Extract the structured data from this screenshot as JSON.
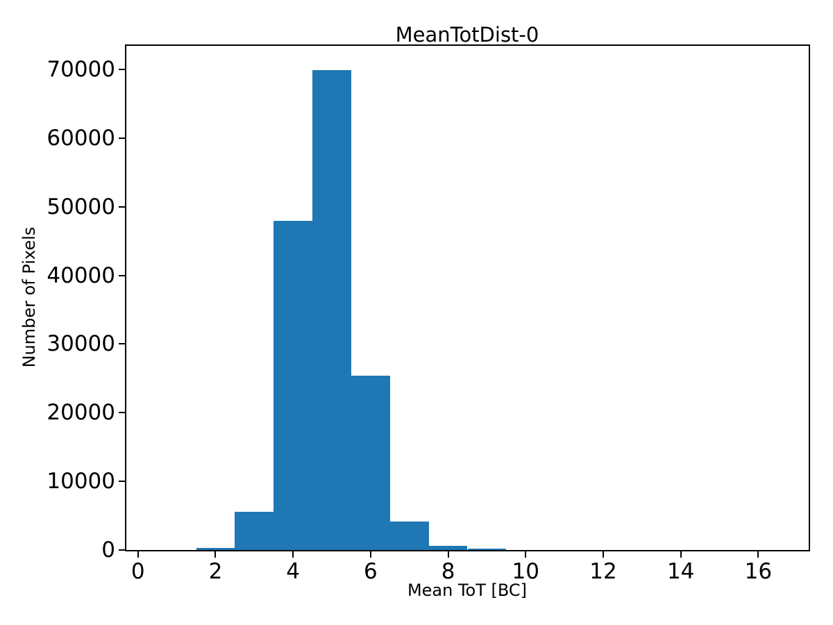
{
  "figure": {
    "background_color": "#ffffff",
    "text_color": "#000000"
  },
  "chart_data": {
    "type": "bar",
    "subtype": "histogram",
    "title": "MeanTotDist-0",
    "xlabel": "Mean ToT [BC]",
    "ylabel": "Number of Pixels",
    "bar_color": "#1f77b4",
    "bin_start": 0.5,
    "bin_width": 1,
    "bin_edges": [
      0.5,
      1.5,
      2.5,
      3.5,
      4.5,
      5.5,
      6.5,
      7.5,
      8.5,
      9.5,
      10.5,
      11.5,
      12.5,
      13.5,
      14.5,
      15.5,
      16.5
    ],
    "values": [
      0,
      300,
      5600,
      48000,
      69900,
      25400,
      4100,
      600,
      250,
      0,
      0,
      0,
      0,
      0,
      0,
      0
    ],
    "xlim": [
      -0.3,
      17.3
    ],
    "ylim": [
      0,
      73440
    ],
    "x_ticks": [
      0,
      2,
      4,
      6,
      8,
      10,
      12,
      14,
      16
    ],
    "x_tick_labels": [
      "0",
      "2",
      "4",
      "6",
      "8",
      "10",
      "12",
      "14",
      "16"
    ],
    "y_ticks": [
      0,
      10000,
      20000,
      30000,
      40000,
      50000,
      60000,
      70000
    ],
    "y_tick_labels": [
      "0",
      "10000",
      "20000",
      "30000",
      "40000",
      "50000",
      "60000",
      "70000"
    ],
    "grid": false,
    "legend_position": "none"
  }
}
